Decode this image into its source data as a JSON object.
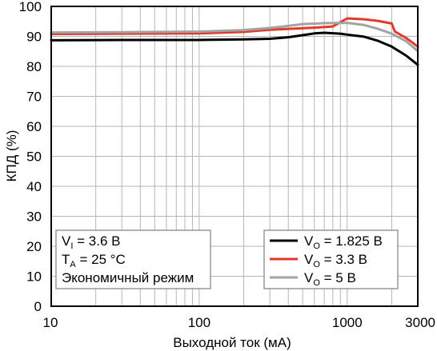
{
  "chart_data": {
    "type": "line",
    "x_scale": "log",
    "xlabel": "Выходной ток (мА)",
    "ylabel": "КПД (%)",
    "xlim": [
      10,
      3000
    ],
    "ylim": [
      0,
      100
    ],
    "x_ticks": [
      {
        "value": 10,
        "label": "10"
      },
      {
        "value": 100,
        "label": "100"
      },
      {
        "value": 1000,
        "label": "1000"
      },
      {
        "value": 3000,
        "label": "3000"
      }
    ],
    "y_ticks": [
      0,
      10,
      20,
      30,
      40,
      50,
      60,
      70,
      80,
      90,
      100
    ],
    "grid": true,
    "conditions": {
      "line1": {
        "var": "V",
        "sub": "I",
        "text": " = 3.6 В"
      },
      "line2": {
        "var": "T",
        "sub": "A",
        "text": " = 25 °C"
      },
      "line3": {
        "text": "Экономичный режим"
      }
    },
    "legend_position": "bottom-right",
    "series": [
      {
        "var": "V",
        "sub": "O",
        "value_text": " = 1.825 В",
        "color": "#000000",
        "points": [
          [
            10,
            88.7
          ],
          [
            30,
            88.8
          ],
          [
            100,
            88.8
          ],
          [
            200,
            89.0
          ],
          [
            300,
            89.2
          ],
          [
            400,
            89.7
          ],
          [
            500,
            90.4
          ],
          [
            600,
            91.0
          ],
          [
            700,
            91.2
          ],
          [
            900,
            90.9
          ],
          [
            1000,
            90.6
          ],
          [
            1300,
            89.9
          ],
          [
            1600,
            88.6
          ],
          [
            2000,
            86.6
          ],
          [
            2500,
            83.6
          ],
          [
            3000,
            80.5
          ]
        ]
      },
      {
        "var": "V",
        "sub": "O",
        "value_text": " = 3.3 В",
        "color": "#e03a2a",
        "points": [
          [
            10,
            90.8
          ],
          [
            30,
            90.9
          ],
          [
            100,
            91.0
          ],
          [
            200,
            91.5
          ],
          [
            300,
            92.2
          ],
          [
            400,
            92.5
          ],
          [
            600,
            92.9
          ],
          [
            800,
            93.3
          ],
          [
            1000,
            96.0
          ],
          [
            1300,
            95.7
          ],
          [
            1600,
            95.2
          ],
          [
            2000,
            94.3
          ],
          [
            2100,
            91.6
          ],
          [
            2500,
            89.5
          ],
          [
            3000,
            86.6
          ]
        ]
      },
      {
        "var": "V",
        "sub": "O",
        "value_text": " = 5 В",
        "color": "#a3a3a3",
        "points": [
          [
            10,
            91.3
          ],
          [
            30,
            91.4
          ],
          [
            100,
            91.6
          ],
          [
            200,
            92.1
          ],
          [
            300,
            92.8
          ],
          [
            400,
            93.5
          ],
          [
            500,
            94.1
          ],
          [
            700,
            94.4
          ],
          [
            900,
            94.5
          ],
          [
            1000,
            94.5
          ],
          [
            1300,
            93.8
          ],
          [
            1600,
            92.6
          ],
          [
            2000,
            90.9
          ],
          [
            2500,
            88.4
          ],
          [
            3000,
            85.1
          ]
        ]
      }
    ]
  }
}
